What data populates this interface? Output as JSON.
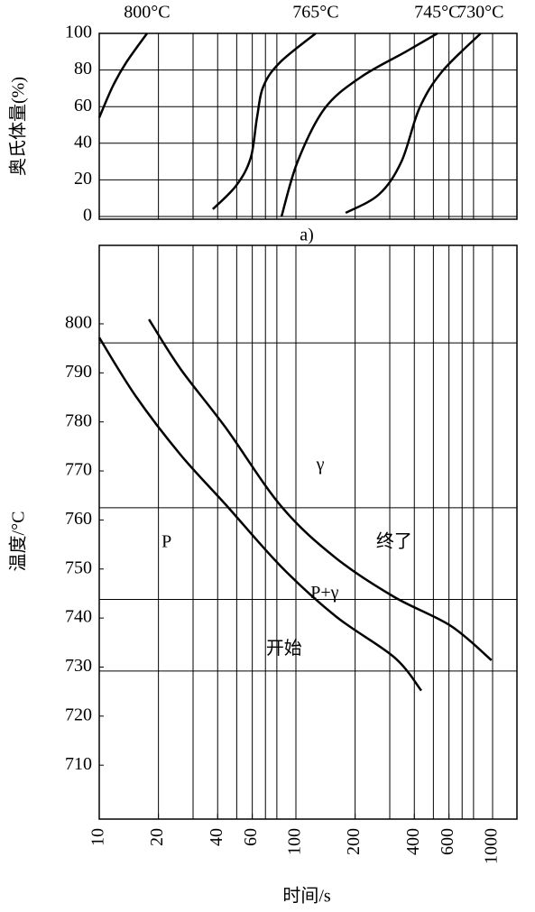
{
  "chart_data": [
    {
      "type": "line",
      "ylabel": "奥氏体量(%)",
      "caption": "a)",
      "xscale": "log",
      "xlim": [
        10,
        1330
      ],
      "ylim": [
        0,
        100
      ],
      "yticks": [
        0,
        20,
        40,
        60,
        80,
        100
      ],
      "grid": true,
      "xgrid": [
        20,
        30,
        40,
        50,
        60,
        70,
        80,
        100,
        200,
        300,
        400,
        500,
        600,
        700,
        800,
        1000
      ],
      "series": [
        {
          "name": "800°C",
          "color": "#000000",
          "x": [
            10,
            11.7,
            13.7,
            17.5
          ],
          "values": [
            54,
            71,
            84,
            100
          ]
        },
        {
          "name": "765°C",
          "color": "#000000",
          "x": [
            37.8,
            49.8,
            58.9,
            63.4,
            68.3,
            82.7,
            126
          ],
          "values": [
            4,
            17,
            32,
            54,
            71,
            84,
            100
          ]
        },
        {
          "name": "745°C",
          "color": "#000000",
          "x": [
            84.5,
            102,
            140,
            213,
            362,
            524
          ],
          "values": [
            0,
            30,
            59,
            76,
            90,
            100
          ]
        },
        {
          "name": "730°C",
          "color": "#000000",
          "x": [
            179,
            264,
            344,
            424,
            552,
            870
          ],
          "values": [
            2,
            12,
            30,
            59,
            79,
            100
          ]
        }
      ]
    },
    {
      "type": "line",
      "ylabel": "温度/°C",
      "xlabel": "时间/s",
      "xscale": "log",
      "xlim": [
        10,
        1330
      ],
      "ylim": [
        699,
        816
      ],
      "xticks": [
        10,
        20,
        40,
        60,
        100,
        200,
        400,
        600,
        1000
      ],
      "yticks": [
        710,
        720,
        730,
        740,
        750,
        760,
        770,
        780,
        790,
        800
      ],
      "grid": false,
      "xgrid": [
        20,
        30,
        40,
        50,
        60,
        70,
        80,
        100,
        200,
        300,
        400,
        500,
        600,
        700,
        800,
        1000
      ],
      "hlines": [
        796.1,
        762.5,
        743.8,
        729.2
      ],
      "series": [
        {
          "color": "#000000",
          "x": [
            10,
            15.3,
            25.9,
            43.8,
            84.5,
            160,
            316,
            434
          ],
          "values": [
            797.2,
            785.3,
            773.3,
            763.2,
            750.4,
            740.3,
            732.0,
            725.2
          ]
        },
        {
          "color": "#000000",
          "x": [
            17.9,
            25.9,
            43.8,
            84.5,
            160,
            316,
            613,
            987
          ],
          "values": [
            800.9,
            790.8,
            778.9,
            762.7,
            752.2,
            744.3,
            738.4,
            731.4
          ]
        }
      ],
      "annotations": [
        {
          "text": "γ",
          "x": 133,
          "y": 771
        },
        {
          "text": "P",
          "x": 22,
          "y": 755.3
        },
        {
          "text": "P+γ",
          "x": 140,
          "y": 744.9
        },
        {
          "text": "开始",
          "x": 87,
          "y": 733.5
        },
        {
          "text": "终了",
          "x": 316,
          "y": 755.3
        }
      ]
    }
  ]
}
